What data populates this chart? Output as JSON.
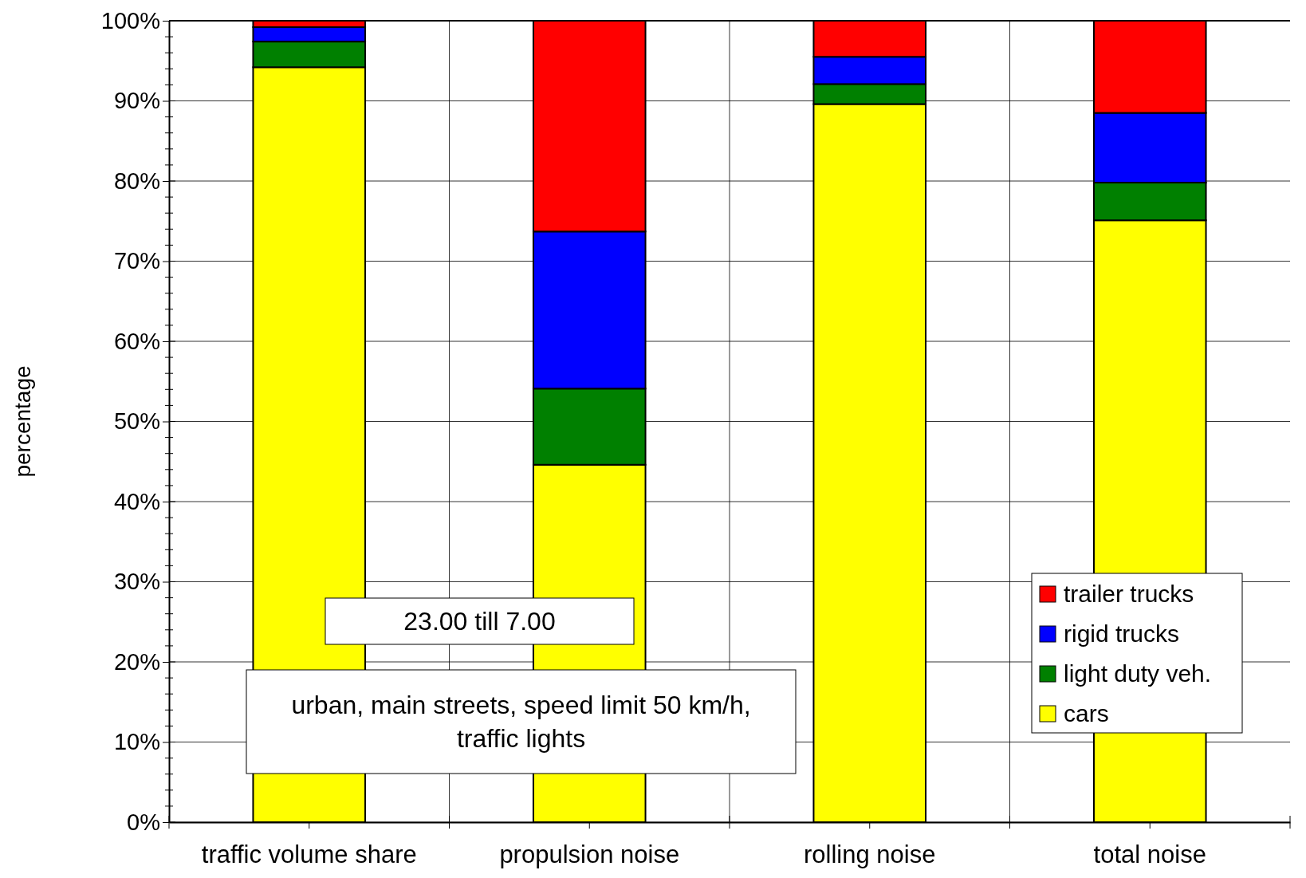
{
  "chart_data": {
    "type": "bar",
    "stacked": true,
    "ylabel": "percentage",
    "categories": [
      "traffic volume share",
      "propulsion noise",
      "rolling noise",
      "total noise"
    ],
    "series": [
      {
        "name": "cars",
        "color": "#ffff00",
        "values": [
          94.2,
          44.6,
          89.6,
          75.1
        ]
      },
      {
        "name": "light duty veh.",
        "color": "#008000",
        "values": [
          3.2,
          9.5,
          2.5,
          4.7
        ]
      },
      {
        "name": "rigid trucks",
        "color": "#0000ff",
        "values": [
          1.8,
          19.6,
          3.4,
          8.7
        ]
      },
      {
        "name": "trailer trucks",
        "color": "#ff0000",
        "values": [
          0.8,
          26.3,
          4.5,
          11.5
        ]
      }
    ],
    "ylim": [
      0,
      100
    ],
    "yticks": [
      {
        "value": 0,
        "label": "0%"
      },
      {
        "value": 10,
        "label": "10%"
      },
      {
        "value": 20,
        "label": "20%"
      },
      {
        "value": 30,
        "label": "30%"
      },
      {
        "value": 40,
        "label": "40%"
      },
      {
        "value": 50,
        "label": "50%"
      },
      {
        "value": 60,
        "label": "60%"
      },
      {
        "value": 70,
        "label": "70%"
      },
      {
        "value": 80,
        "label": "80%"
      },
      {
        "value": 90,
        "label": "90%"
      },
      {
        "value": 100,
        "label": "100%"
      }
    ],
    "grid": true,
    "legend": "bottom right",
    "annotations": [
      "23.00 till 7.00",
      "urban, main streets, speed limit 50 km/h, traffic lights"
    ]
  }
}
